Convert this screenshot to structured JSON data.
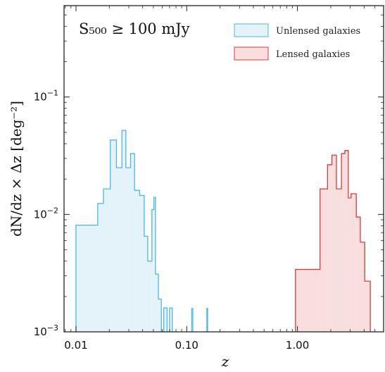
{
  "chart_data": {
    "type": "histogram",
    "annotation": "S₅₀₀ ≥ 100 mJy",
    "xlabel": "z",
    "ylabel": "dN/dz × Δz [deg⁻²]",
    "xscale": "log",
    "yscale": "log",
    "xlim": [
      0.0078,
      6.0
    ],
    "ylim": [
      0.001,
      0.6
    ],
    "xticks": [
      {
        "value": 0.01,
        "label": "0.01"
      },
      {
        "value": 0.1,
        "label": "0.10"
      },
      {
        "value": 1.0,
        "label": "1.00"
      }
    ],
    "yticks": [
      {
        "value": 0.001,
        "base": "10",
        "exp": "−3"
      },
      {
        "value": 0.01,
        "base": "10",
        "exp": "−2"
      },
      {
        "value": 0.1,
        "base": "10",
        "exp": "−1"
      }
    ],
    "legend_position": "top-right",
    "series": [
      {
        "name": "Unlensed galaxies",
        "stroke": "#4bb8df",
        "fill": "#e4f3fa",
        "edges": [
          0.01,
          0.0138,
          0.0157,
          0.0177,
          0.0204,
          0.0219,
          0.0232,
          0.026,
          0.0282,
          0.0311,
          0.0338,
          0.0376,
          0.0413,
          0.0445,
          0.0485,
          0.0505,
          0.0522,
          0.0555,
          0.059,
          0.062,
          0.0665,
          0.07,
          0.074
        ],
        "values": [
          0.0081,
          0.0081,
          0.0124,
          0.0165,
          0.043,
          0.043,
          0.025,
          0.052,
          0.025,
          0.033,
          0.016,
          0.0145,
          0.0065,
          0.004,
          0.011,
          0.014,
          0.0031,
          0.0019,
          0.001,
          0.0016,
          0.001,
          0.0016
        ],
        "spikes": [
          {
            "z": 0.111,
            "value": 0.0016
          },
          {
            "z": 0.1135,
            "value": 0.0016
          },
          {
            "z": 0.152,
            "value": 0.0016
          },
          {
            "z": 0.1545,
            "value": 0.0016
          }
        ]
      },
      {
        "name": "Lensed galaxies",
        "stroke": "#e0393b",
        "fill": "#f9dede",
        "edges": [
          0.96,
          1.43,
          1.6,
          1.73,
          1.87,
          2.05,
          2.25,
          2.5,
          2.68,
          2.88,
          3.05,
          3.4,
          3.7,
          4.05,
          4.55
        ],
        "values": [
          0.0034,
          0.0034,
          0.0165,
          0.0165,
          0.0265,
          0.032,
          0.0165,
          0.033,
          0.035,
          0.0138,
          0.015,
          0.0095,
          0.0058,
          0.0027
        ]
      }
    ]
  }
}
